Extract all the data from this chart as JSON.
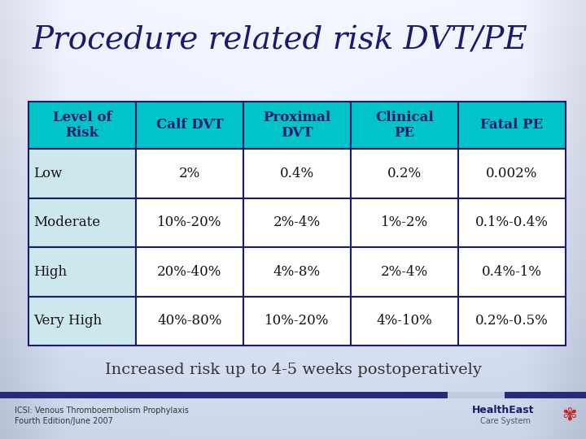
{
  "title": "Procedure related risk DVT/PE",
  "subtitle": "Increased risk up to 4-5 weeks postoperatively",
  "footnote_line1": "ICSI: Venous Thromboembolism Prophylaxis",
  "footnote_line2": "Fourth Edition/June 2007",
  "bg_top_color": "#dde5f0",
  "bg_center_color": "#eef2f9",
  "bg_bottom_color": "#c8d4e4",
  "bg_left_color": "#b8c8dc",
  "bg_right_color": "#b8c8dc",
  "header_bg": "#00c4c8",
  "header_text_color": "#1a1a6e",
  "cell_col0_bg": "#cce8ec",
  "cell_other_bg": "#ffffff",
  "table_border_color": "#1a1a6e",
  "title_color": "#1a1a6e",
  "subtitle_color": "#333333",
  "footnote_color": "#333333",
  "footer_bar_color": "#2a2a7a",
  "columns": [
    "Level of\nRisk",
    "Calf DVT",
    "Proximal\nDVT",
    "Clinical\nPE",
    "Fatal PE"
  ],
  "rows": [
    [
      "Low",
      "2%",
      "0.4%",
      "0.2%",
      "0.002%"
    ],
    [
      "Moderate",
      "10%-20%",
      "2%-4%",
      "1%-2%",
      "0.1%-0.4%"
    ],
    [
      "High",
      "20%-40%",
      "4%-8%",
      "2%-4%",
      "0.4%-1%"
    ],
    [
      "Very High",
      "40%-80%",
      "10%-20%",
      "4%-10%",
      "0.2%-0.5%"
    ]
  ]
}
